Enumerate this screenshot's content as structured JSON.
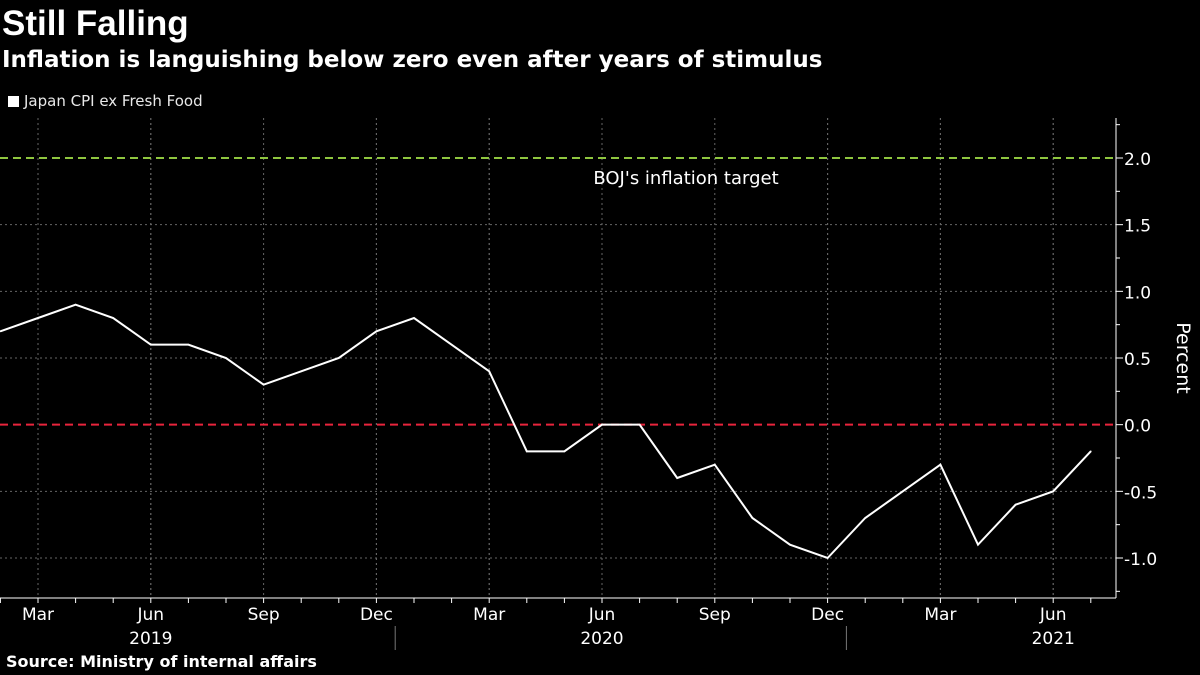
{
  "header": {
    "title": "Still Falling",
    "subtitle": "Inflation is languishing below zero even after years of stimulus"
  },
  "footer": {
    "source": "Source:  Ministry of internal affairs"
  },
  "colors": {
    "background": "#000000",
    "series": "#ffffff",
    "target_line": "#8fc63f",
    "zero_line": "#e8243c",
    "grid": "#666666"
  },
  "chart_data": {
    "type": "line",
    "title": "Still Falling",
    "subtitle": "Inflation is languishing below zero even after years of stimulus",
    "ylabel": "Percent",
    "xlabel": "",
    "ylim": [
      -1.3,
      2.3
    ],
    "yticks": [
      -1.0,
      -0.5,
      0.0,
      0.5,
      1.0,
      1.5,
      2.0
    ],
    "ytick_labels": [
      "-1.0",
      "-0.5",
      "0.0",
      "0.5",
      "1.0",
      "1.5",
      "2.0"
    ],
    "grid": true,
    "legend_position": "top-left",
    "series": [
      {
        "name": "Japan CPI ex Fresh Food",
        "x": [
          "2019-02",
          "2019-03",
          "2019-04",
          "2019-05",
          "2019-06",
          "2019-07",
          "2019-08",
          "2019-09",
          "2019-10",
          "2019-11",
          "2019-12",
          "2020-01",
          "2020-02",
          "2020-03",
          "2020-04",
          "2020-05",
          "2020-06",
          "2020-07",
          "2020-08",
          "2020-09",
          "2020-10",
          "2020-11",
          "2020-12",
          "2021-01",
          "2021-02",
          "2021-03",
          "2021-04",
          "2021-05",
          "2021-06",
          "2021-07"
        ],
        "values": [
          0.7,
          0.8,
          0.9,
          0.8,
          0.6,
          0.6,
          0.5,
          0.3,
          0.4,
          0.5,
          0.7,
          0.8,
          0.6,
          0.4,
          -0.2,
          -0.2,
          0.0,
          0.0,
          -0.4,
          -0.3,
          -0.7,
          -0.9,
          -1.0,
          -0.7,
          -0.5,
          -0.3,
          -0.9,
          -0.6,
          -0.5,
          -0.2
        ]
      }
    ],
    "reference_lines": [
      {
        "name": "BOJ inflation target",
        "value": 2.0,
        "label": "BOJ's inflation target"
      },
      {
        "name": "zero",
        "value": 0.0,
        "label": ""
      }
    ],
    "x_month_ticks": [
      {
        "month": "2019-03",
        "label": "Mar"
      },
      {
        "month": "2019-06",
        "label": "Jun"
      },
      {
        "month": "2019-09",
        "label": "Sep"
      },
      {
        "month": "2019-12",
        "label": "Dec"
      },
      {
        "month": "2020-03",
        "label": "Mar"
      },
      {
        "month": "2020-06",
        "label": "Jun"
      },
      {
        "month": "2020-09",
        "label": "Sep"
      },
      {
        "month": "2020-12",
        "label": "Dec"
      },
      {
        "month": "2021-03",
        "label": "Mar"
      },
      {
        "month": "2021-06",
        "label": "Jun"
      }
    ],
    "x_year_labels": [
      {
        "year": "2019",
        "center_month": "2019-06"
      },
      {
        "year": "2020",
        "center_month": "2020-06"
      },
      {
        "year": "2021",
        "center_month": "2021-06"
      }
    ]
  }
}
